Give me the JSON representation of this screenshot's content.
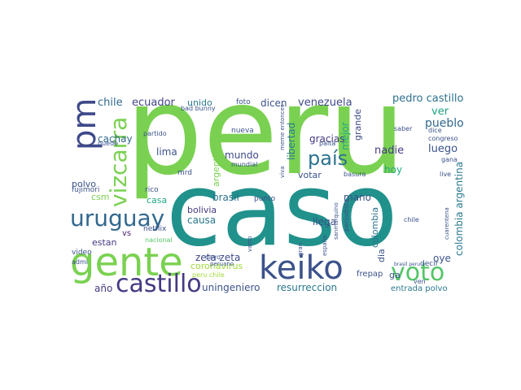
{
  "wordcloud": {
    "words": [
      {
        "text": "peru",
        "color": "#7ad151"
      },
      {
        "text": "caso",
        "color": "#21918c"
      },
      {
        "text": "keiko",
        "color": "#3b528b"
      },
      {
        "text": "gente",
        "color": "#7ad151"
      },
      {
        "text": "uruguay",
        "color": "#31688e"
      },
      {
        "text": "castillo",
        "color": "#443983"
      },
      {
        "text": "pm",
        "color": "#3e4989"
      },
      {
        "text": "vizcarra",
        "color": "#7ad151"
      },
      {
        "text": "país",
        "color": "#2c728e"
      },
      {
        "text": "voto",
        "color": "#54c568"
      },
      {
        "text": "chile",
        "color": "#31688e"
      },
      {
        "text": "ecuador",
        "color": "#414487"
      },
      {
        "text": "unido",
        "color": "#2a788e"
      },
      {
        "text": "foto",
        "color": "#3b528b"
      },
      {
        "text": "dicen",
        "color": "#3b528b"
      },
      {
        "text": "venezuela",
        "color": "#3e4989"
      },
      {
        "text": "pedro castillo",
        "color": "#2c728e"
      },
      {
        "text": "ver",
        "color": "#20a386"
      },
      {
        "text": "pueblo",
        "color": "#31688e"
      },
      {
        "text": "argentina",
        "color": "#7ad151"
      },
      {
        "text": "libertad",
        "color": "#2a788e"
      },
      {
        "text": "gracias",
        "color": "#443983"
      },
      {
        "text": "mejor",
        "color": "#22a884"
      },
      {
        "text": "grande",
        "color": "#3e4989"
      },
      {
        "text": "nadie",
        "color": "#443983"
      },
      {
        "text": "luego",
        "color": "#3b528b"
      },
      {
        "text": "cachay",
        "color": "#31688e"
      },
      {
        "text": "lima",
        "color": "#3b528b"
      },
      {
        "text": "mundo",
        "color": "#3e4989"
      },
      {
        "text": "votar",
        "color": "#3b528b"
      },
      {
        "text": "hoy",
        "color": "#22a884"
      },
      {
        "text": "brasil",
        "color": "#2c728e"
      },
      {
        "text": "bolivia",
        "color": "#443983"
      },
      {
        "text": "casa",
        "color": "#22a884"
      },
      {
        "text": "causa",
        "color": "#2a788e"
      },
      {
        "text": "estan",
        "color": "#443983"
      },
      {
        "text": "polvo",
        "color": "#3b528b"
      },
      {
        "text": "csm",
        "color": "#7ad151"
      },
      {
        "text": "vs",
        "color": "#481f70"
      },
      {
        "text": "may",
        "color": "#3b528b"
      },
      {
        "text": "zeta zeta",
        "color": "#3e4989"
      },
      {
        "text": "coronavirus",
        "color": "#a0da39"
      },
      {
        "text": "uningeniero",
        "color": "#3b528b"
      },
      {
        "text": "resurreccion",
        "color": "#2a788e"
      },
      {
        "text": "año",
        "color": "#443983"
      },
      {
        "text": "mano",
        "color": "#3b528b"
      },
      {
        "text": "llega",
        "color": "#3b528b"
      },
      {
        "text": "colombia",
        "color": "#2c728e"
      },
      {
        "text": "colombia argentina",
        "color": "#2a788e"
      },
      {
        "text": "oye",
        "color": "#3b528b"
      },
      {
        "text": "ga",
        "color": "#3b528b"
      },
      {
        "text": "dia",
        "color": "#3b528b"
      },
      {
        "text": "frepap",
        "color": "#3b528b"
      },
      {
        "text": "entrada polvo",
        "color": "#2a788e"
      },
      {
        "text": "fujimori",
        "color": "#3b528b"
      },
      {
        "text": "rico",
        "color": "#3b528b"
      },
      {
        "text": "nacional",
        "color": "#54c568"
      },
      {
        "text": "netflix",
        "color": "#3b528b"
      },
      {
        "text": "video",
        "color": "#3b528b"
      },
      {
        "text": "admi",
        "color": "#3b528b"
      },
      {
        "text": "partido",
        "color": "#3b528b"
      },
      {
        "text": "nueva",
        "color": "#3b528b"
      },
      {
        "text": "mrd",
        "color": "#3b528b"
      },
      {
        "text": "bad bunny",
        "color": "#3b528b"
      },
      {
        "text": "punto",
        "color": "#3b528b"
      },
      {
        "text": "mundial",
        "color": "#3b528b"
      },
      {
        "text": "decir",
        "color": "#3b528b"
      },
      {
        "text": "chile",
        "color": "#3b528b"
      },
      {
        "text": "congreso",
        "color": "#3b528b"
      },
      {
        "text": "dice",
        "color": "#3b528b"
      },
      {
        "text": "saber",
        "color": "#3b528b"
      },
      {
        "text": "gana",
        "color": "#3b528b"
      },
      {
        "text": "live",
        "color": "#3b528b"
      },
      {
        "text": "palta",
        "color": "#3b528b"
      },
      {
        "text": "basura",
        "color": "#3b528b"
      },
      {
        "text": "sanmarquino",
        "color": "#3b528b"
      },
      {
        "text": "periodista",
        "color": "#3b528b"
      },
      {
        "text": "cuarentena",
        "color": "#3b528b"
      },
      {
        "text": "brasil peru",
        "color": "#3b528b"
      },
      {
        "text": "peru chile",
        "color": "#a0da39"
      },
      {
        "text": "cayo",
        "color": "#3b528b"
      },
      {
        "text": "peruano",
        "color": "#3b528b"
      },
      {
        "text": "viva",
        "color": "#3b528b"
      },
      {
        "text": "gran",
        "color": "#3b528b"
      },
      {
        "text": "meme entonces",
        "color": "#3b528b"
      },
      {
        "text": "españa",
        "color": "#3b528b"
      },
      {
        "text": "puede",
        "color": "#3b528b"
      },
      {
        "text": "vamo",
        "color": "#3b528b"
      },
      {
        "text": "ven",
        "color": "#3b528b"
      }
    ]
  }
}
